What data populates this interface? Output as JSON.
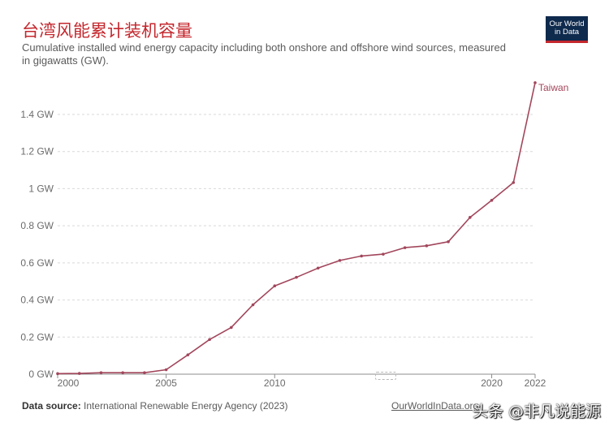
{
  "header": {
    "title": "台湾风能累计装机容量",
    "subtitle": "Cumulative installed wind energy capacity including both onshore and offshore wind sources, measured in gigawatts (GW).",
    "logo_line1": "Our World",
    "logo_line2": "in Data"
  },
  "footer": {
    "source_label": "Data source:",
    "source_text": "International Renewable Energy Agency (2023)",
    "link_text": "OurWorldInData.org",
    "watermark": "头条 @非凡说能源"
  },
  "colors": {
    "series": "#a2465b",
    "grid": "#d9d9d9",
    "axis": "#8c8c8c"
  },
  "chart_data": {
    "type": "line",
    "title": "台湾风能累计装机容量",
    "xlim": [
      2000,
      2022
    ],
    "ylim": [
      0,
      1.6
    ],
    "y_ticks": [
      0,
      0.2,
      0.4,
      0.6,
      0.8,
      1,
      1.2,
      1.4
    ],
    "y_tick_labels": [
      "0 GW",
      "0.2 GW",
      "0.4 GW",
      "0.6 GW",
      "0.8 GW",
      "1 GW",
      "1.2 GW",
      "1.4 GW"
    ],
    "x_ticks": [
      2000,
      2005,
      2010,
      2020,
      2022
    ],
    "x_tick_labels": [
      "2000",
      "2005",
      "2010",
      "2020",
      "2022"
    ],
    "grid": "horizontal dashed",
    "series": [
      {
        "name": "Taiwan",
        "x": [
          2000,
          2001,
          2002,
          2003,
          2004,
          2005,
          2006,
          2007,
          2008,
          2009,
          2010,
          2011,
          2012,
          2013,
          2014,
          2015,
          2016,
          2017,
          2018,
          2019,
          2020,
          2021,
          2022
        ],
        "values": [
          0.003,
          0.004,
          0.008,
          0.008,
          0.008,
          0.024,
          0.104,
          0.187,
          0.252,
          0.374,
          0.476,
          0.522,
          0.572,
          0.613,
          0.637,
          0.647,
          0.682,
          0.692,
          0.714,
          0.845,
          0.937,
          1.033,
          1.571
        ]
      }
    ]
  }
}
